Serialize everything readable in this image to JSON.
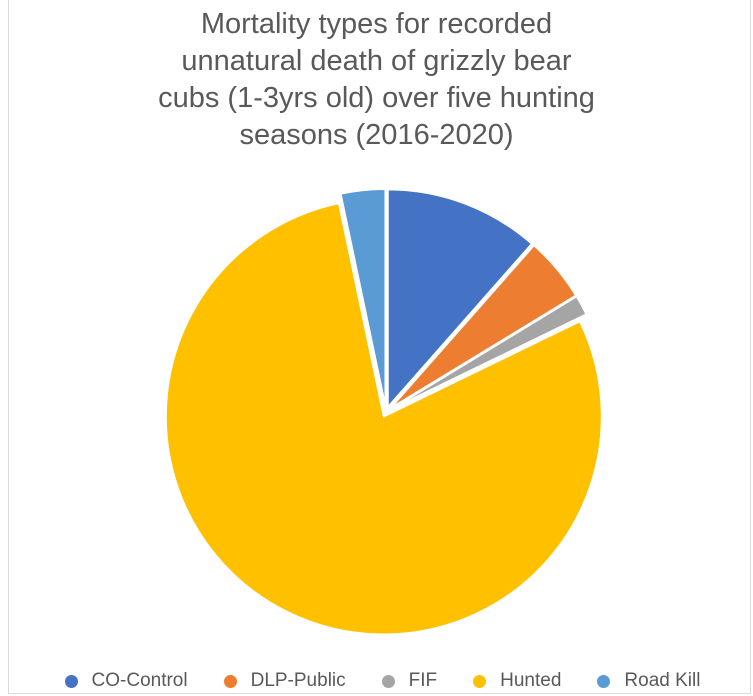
{
  "chart_data": {
    "type": "pie",
    "title_lines": [
      "Mortality types for recorded",
      "unnatural death of grizzly bear",
      "cubs (1-3yrs old) over five hunting",
      "seasons (2016-2020)"
    ],
    "categories": [
      "CO-Control",
      "DLP-Public",
      "FIF",
      "Hunted",
      "Road Kill"
    ],
    "values": [
      11.5,
      4.8,
      1.5,
      78.9,
      3.3
    ],
    "colors": [
      "#4472C4",
      "#ED7D31",
      "#A5A5A5",
      "#FFC000",
      "#5B9BD5"
    ],
    "legend_position": "bottom",
    "exploded": true
  }
}
